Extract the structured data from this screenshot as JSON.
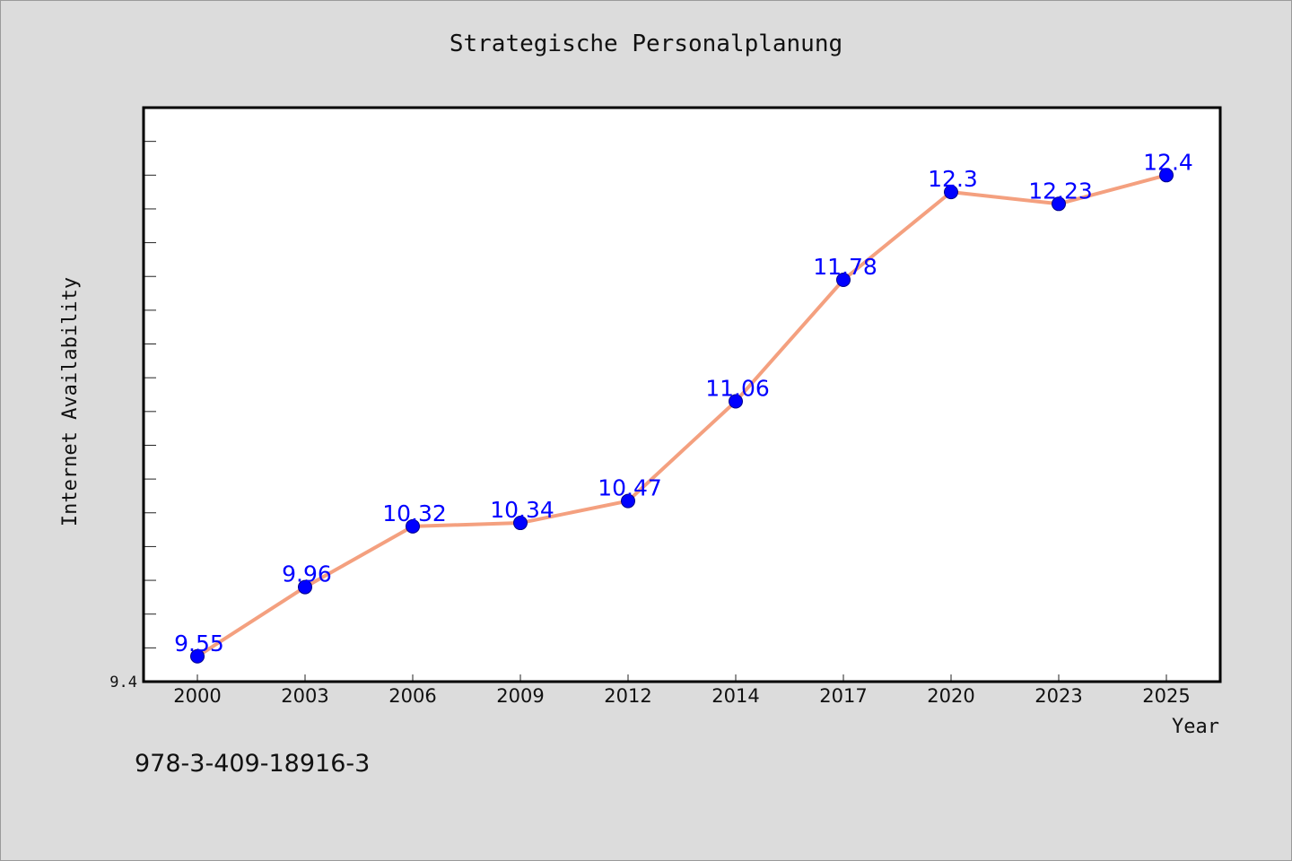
{
  "chart_data": {
    "type": "line",
    "title": "Strategische Personalplanung",
    "xlabel": "Year",
    "ylabel": "Internet Availability",
    "categories": [
      "2000",
      "2003",
      "2006",
      "2009",
      "2012",
      "2014",
      "2017",
      "2020",
      "2023",
      "2025"
    ],
    "series": [
      {
        "values": [
          9.55,
          9.96,
          10.32,
          10.34,
          10.47,
          11.06,
          11.78,
          12.3,
          12.23,
          12.4
        ]
      }
    ],
    "data_labels": [
      "9.55",
      "9.96",
      "10.32",
      "10.34",
      "10.47",
      "11.06",
      "11.78",
      "12.3",
      "12.23",
      "12.4"
    ],
    "ylim": [
      9.4,
      12.8
    ],
    "y_tick_labels": [
      "9.4"
    ],
    "grid": false,
    "line_color": "#f4a07f",
    "marker_color": "#0000ff"
  },
  "footer": {
    "isbn": "978-3-409-18916-3"
  }
}
